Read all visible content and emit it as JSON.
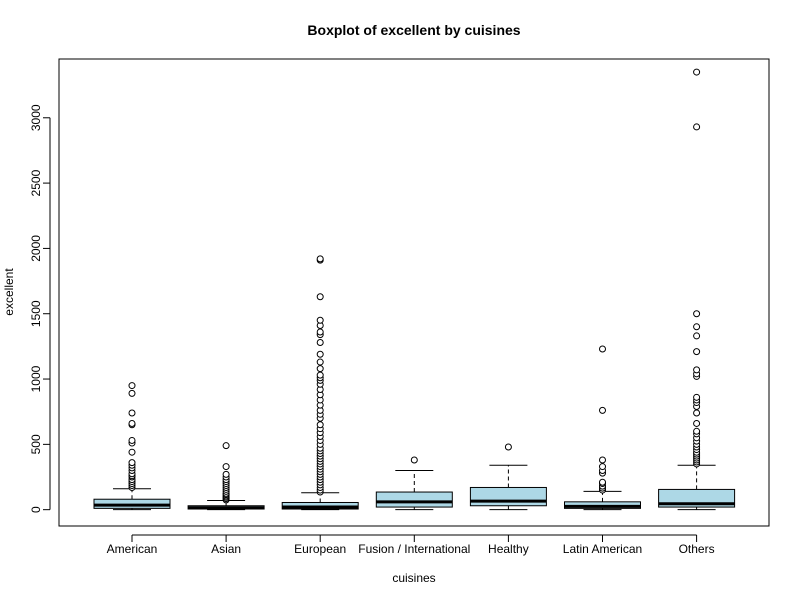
{
  "chart_data": {
    "type": "boxplot",
    "title": "Boxplot of excellent by cuisines",
    "xlabel": "cuisines",
    "ylabel": "excellent",
    "ylim": [
      -125,
      3450
    ],
    "yticks": [
      0,
      500,
      1000,
      1500,
      2000,
      2500,
      3000
    ],
    "grid": false,
    "legend": "none",
    "colors": {
      "box_fill": "#add8e6",
      "stroke": "#000000",
      "background": "#ffffff"
    },
    "categories": [
      "American",
      "Asian",
      "European",
      "Fusion / International",
      "Healthy",
      "Latin American",
      "Others"
    ],
    "boxes": [
      {
        "name": "American",
        "whisker_low": 0,
        "q1": 10,
        "median": 35,
        "q3": 80,
        "whisker_high": 160,
        "outliers": [
          170,
          185,
          200,
          215,
          230,
          250,
          260,
          275,
          300,
          320,
          340,
          360,
          440,
          510,
          530,
          650,
          660,
          740,
          890,
          950
        ]
      },
      {
        "name": "Asian",
        "whisker_low": 0,
        "q1": 5,
        "median": 15,
        "q3": 30,
        "whisker_high": 70,
        "outliers": [
          75,
          85,
          95,
          105,
          115,
          125,
          140,
          155,
          170,
          185,
          200,
          215,
          230,
          250,
          270,
          330,
          490
        ]
      },
      {
        "name": "European",
        "whisker_low": 0,
        "q1": 5,
        "median": 20,
        "q3": 55,
        "whisker_high": 130,
        "outliers": [
          135,
          150,
          170,
          190,
          210,
          230,
          250,
          270,
          290,
          310,
          330,
          350,
          370,
          390,
          410,
          430,
          450,
          470,
          500,
          530,
          560,
          590,
          620,
          650,
          700,
          730,
          760,
          800,
          840,
          880,
          920,
          960,
          990,
          1010,
          1030,
          1080,
          1130,
          1190,
          1280,
          1340,
          1360,
          1410,
          1450,
          1630,
          1910,
          1920
        ]
      },
      {
        "name": "Fusion / International",
        "whisker_low": 0,
        "q1": 20,
        "median": 60,
        "q3": 135,
        "whisker_high": 300,
        "outliers": [
          380
        ]
      },
      {
        "name": "Healthy",
        "whisker_low": 0,
        "q1": 30,
        "median": 65,
        "q3": 170,
        "whisker_high": 340,
        "outliers": [
          480
        ]
      },
      {
        "name": "Latin American",
        "whisker_low": 0,
        "q1": 10,
        "median": 25,
        "q3": 60,
        "whisker_high": 140,
        "outliers": [
          150,
          165,
          180,
          200,
          210,
          280,
          300,
          330,
          380,
          760,
          1230
        ]
      },
      {
        "name": "Others",
        "whisker_low": 0,
        "q1": 20,
        "median": 45,
        "q3": 155,
        "whisker_high": 340,
        "outliers": [
          350,
          365,
          380,
          395,
          410,
          425,
          440,
          460,
          480,
          500,
          525,
          550,
          580,
          600,
          660,
          740,
          790,
          820,
          840,
          860,
          1020,
          1040,
          1070,
          1210,
          1330,
          1400,
          1500,
          2930,
          3350
        ]
      }
    ]
  }
}
